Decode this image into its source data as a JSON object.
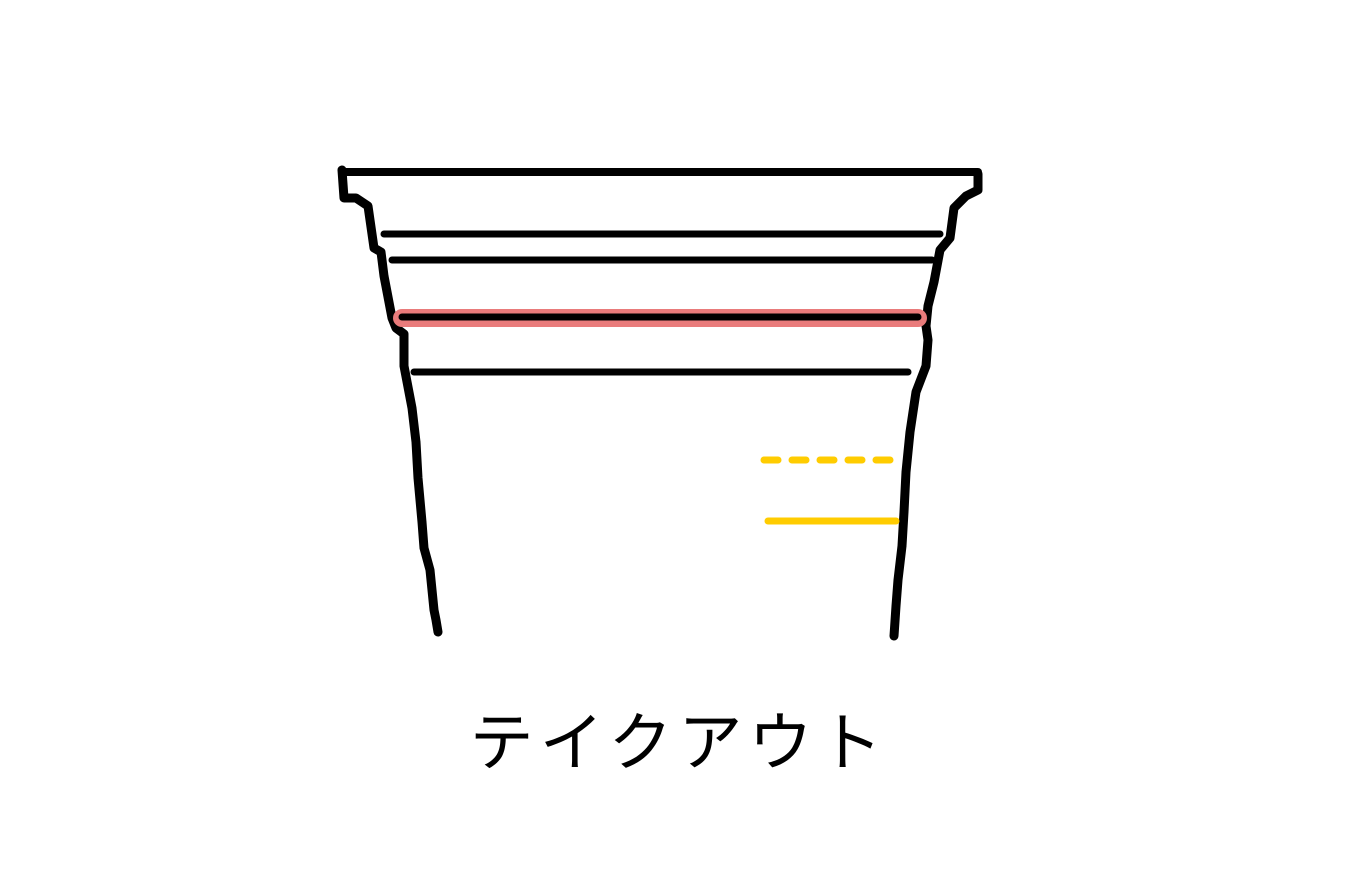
{
  "diagram": {
    "caption": "テイクアウト",
    "colors": {
      "outline": "#000000",
      "highlight": "#e97b7b",
      "marker": "#ffcc00",
      "background": "#ffffff"
    }
  }
}
